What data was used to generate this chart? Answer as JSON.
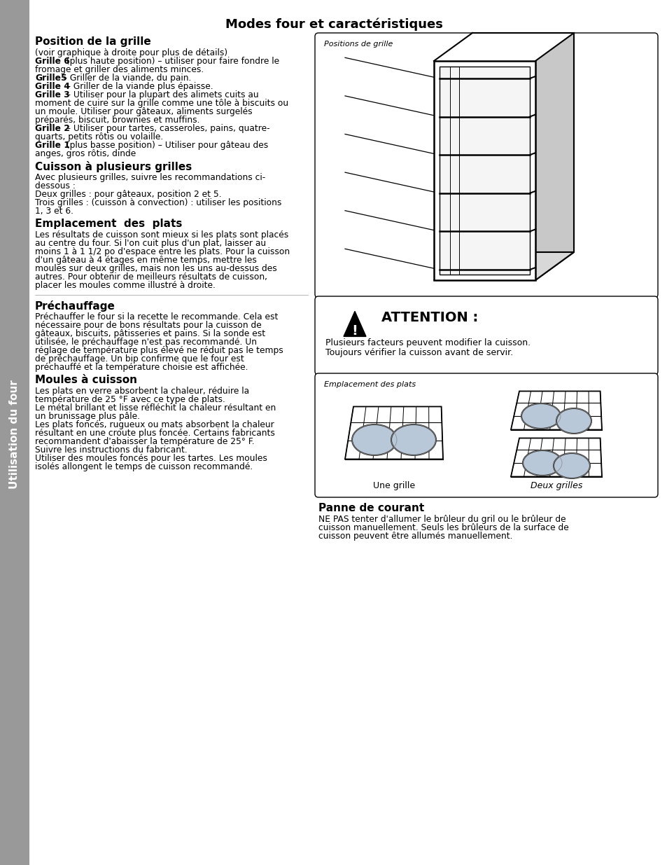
{
  "title": "Modes four et caractéristiques",
  "sidebar_text": "Utilisation du four",
  "sidebar_color": "#999999",
  "bg_color": "#ffffff",
  "box1_label": "Positions de grille",
  "box2_label": "Emplacement des plats",
  "attention_title": "ATTENTION :",
  "attention_body": "Plusieurs facteurs peuvent modifier la cuisson.\nToujours vérifier la cuisson avant de servir.",
  "une_grille_label": "Une grille",
  "deux_grilles_label": "Deux grilles",
  "section1_heading": "Position de la grille",
  "section2_heading": "Cuisson à plusieurs grilles",
  "section3_heading": "Emplacement des plats",
  "section4_heading": "Préchauffage",
  "section5_heading": "Moules à cuisson",
  "section6_heading": "Panne de courant"
}
